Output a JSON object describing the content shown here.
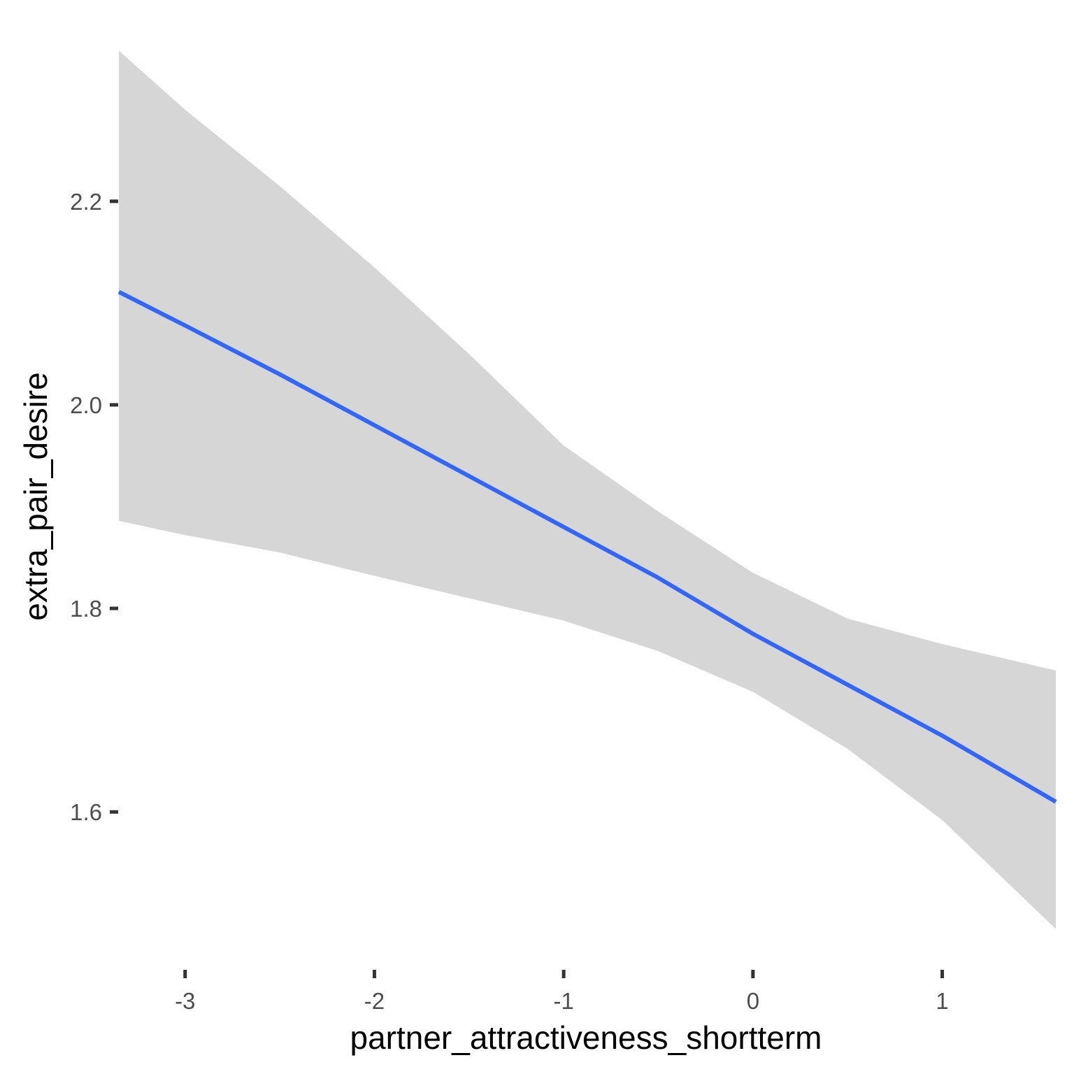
{
  "chart_data": {
    "type": "line",
    "title": "",
    "xlabel": "partner_attractiveness_shortterm",
    "ylabel": "extra_pair_desire",
    "xlim": [
      -3.35,
      1.6
    ],
    "ylim": [
      1.46,
      2.36
    ],
    "x_ticks": [
      -3,
      -2,
      -1,
      0,
      1
    ],
    "x_tick_labels": [
      "-3",
      "-2",
      "-1",
      "0",
      "1"
    ],
    "y_ticks": [
      1.6,
      1.8,
      2.0,
      2.2
    ],
    "y_tick_labels": [
      "1.6",
      "1.8",
      "2.0",
      "2.2"
    ],
    "grid": false,
    "series": [
      {
        "x": [
          -3.35,
          -3.0,
          -2.5,
          -2.0,
          -1.5,
          -1.0,
          -0.5,
          0.0,
          0.5,
          1.0,
          1.6
        ],
        "y": [
          2.111,
          2.078,
          2.03,
          1.98,
          1.93,
          1.88,
          1.83,
          1.775,
          1.725,
          1.675,
          1.61
        ],
        "ci_lower": [
          1.886,
          1.872,
          1.855,
          1.832,
          1.81,
          1.788,
          1.758,
          1.718,
          1.662,
          1.592,
          1.485
        ],
        "ci_upper": [
          2.348,
          2.29,
          2.215,
          2.135,
          2.05,
          1.96,
          1.895,
          1.835,
          1.79,
          1.765,
          1.739
        ],
        "color": "#3366FF",
        "ribbon_color": "#D6D6D6"
      }
    ]
  }
}
